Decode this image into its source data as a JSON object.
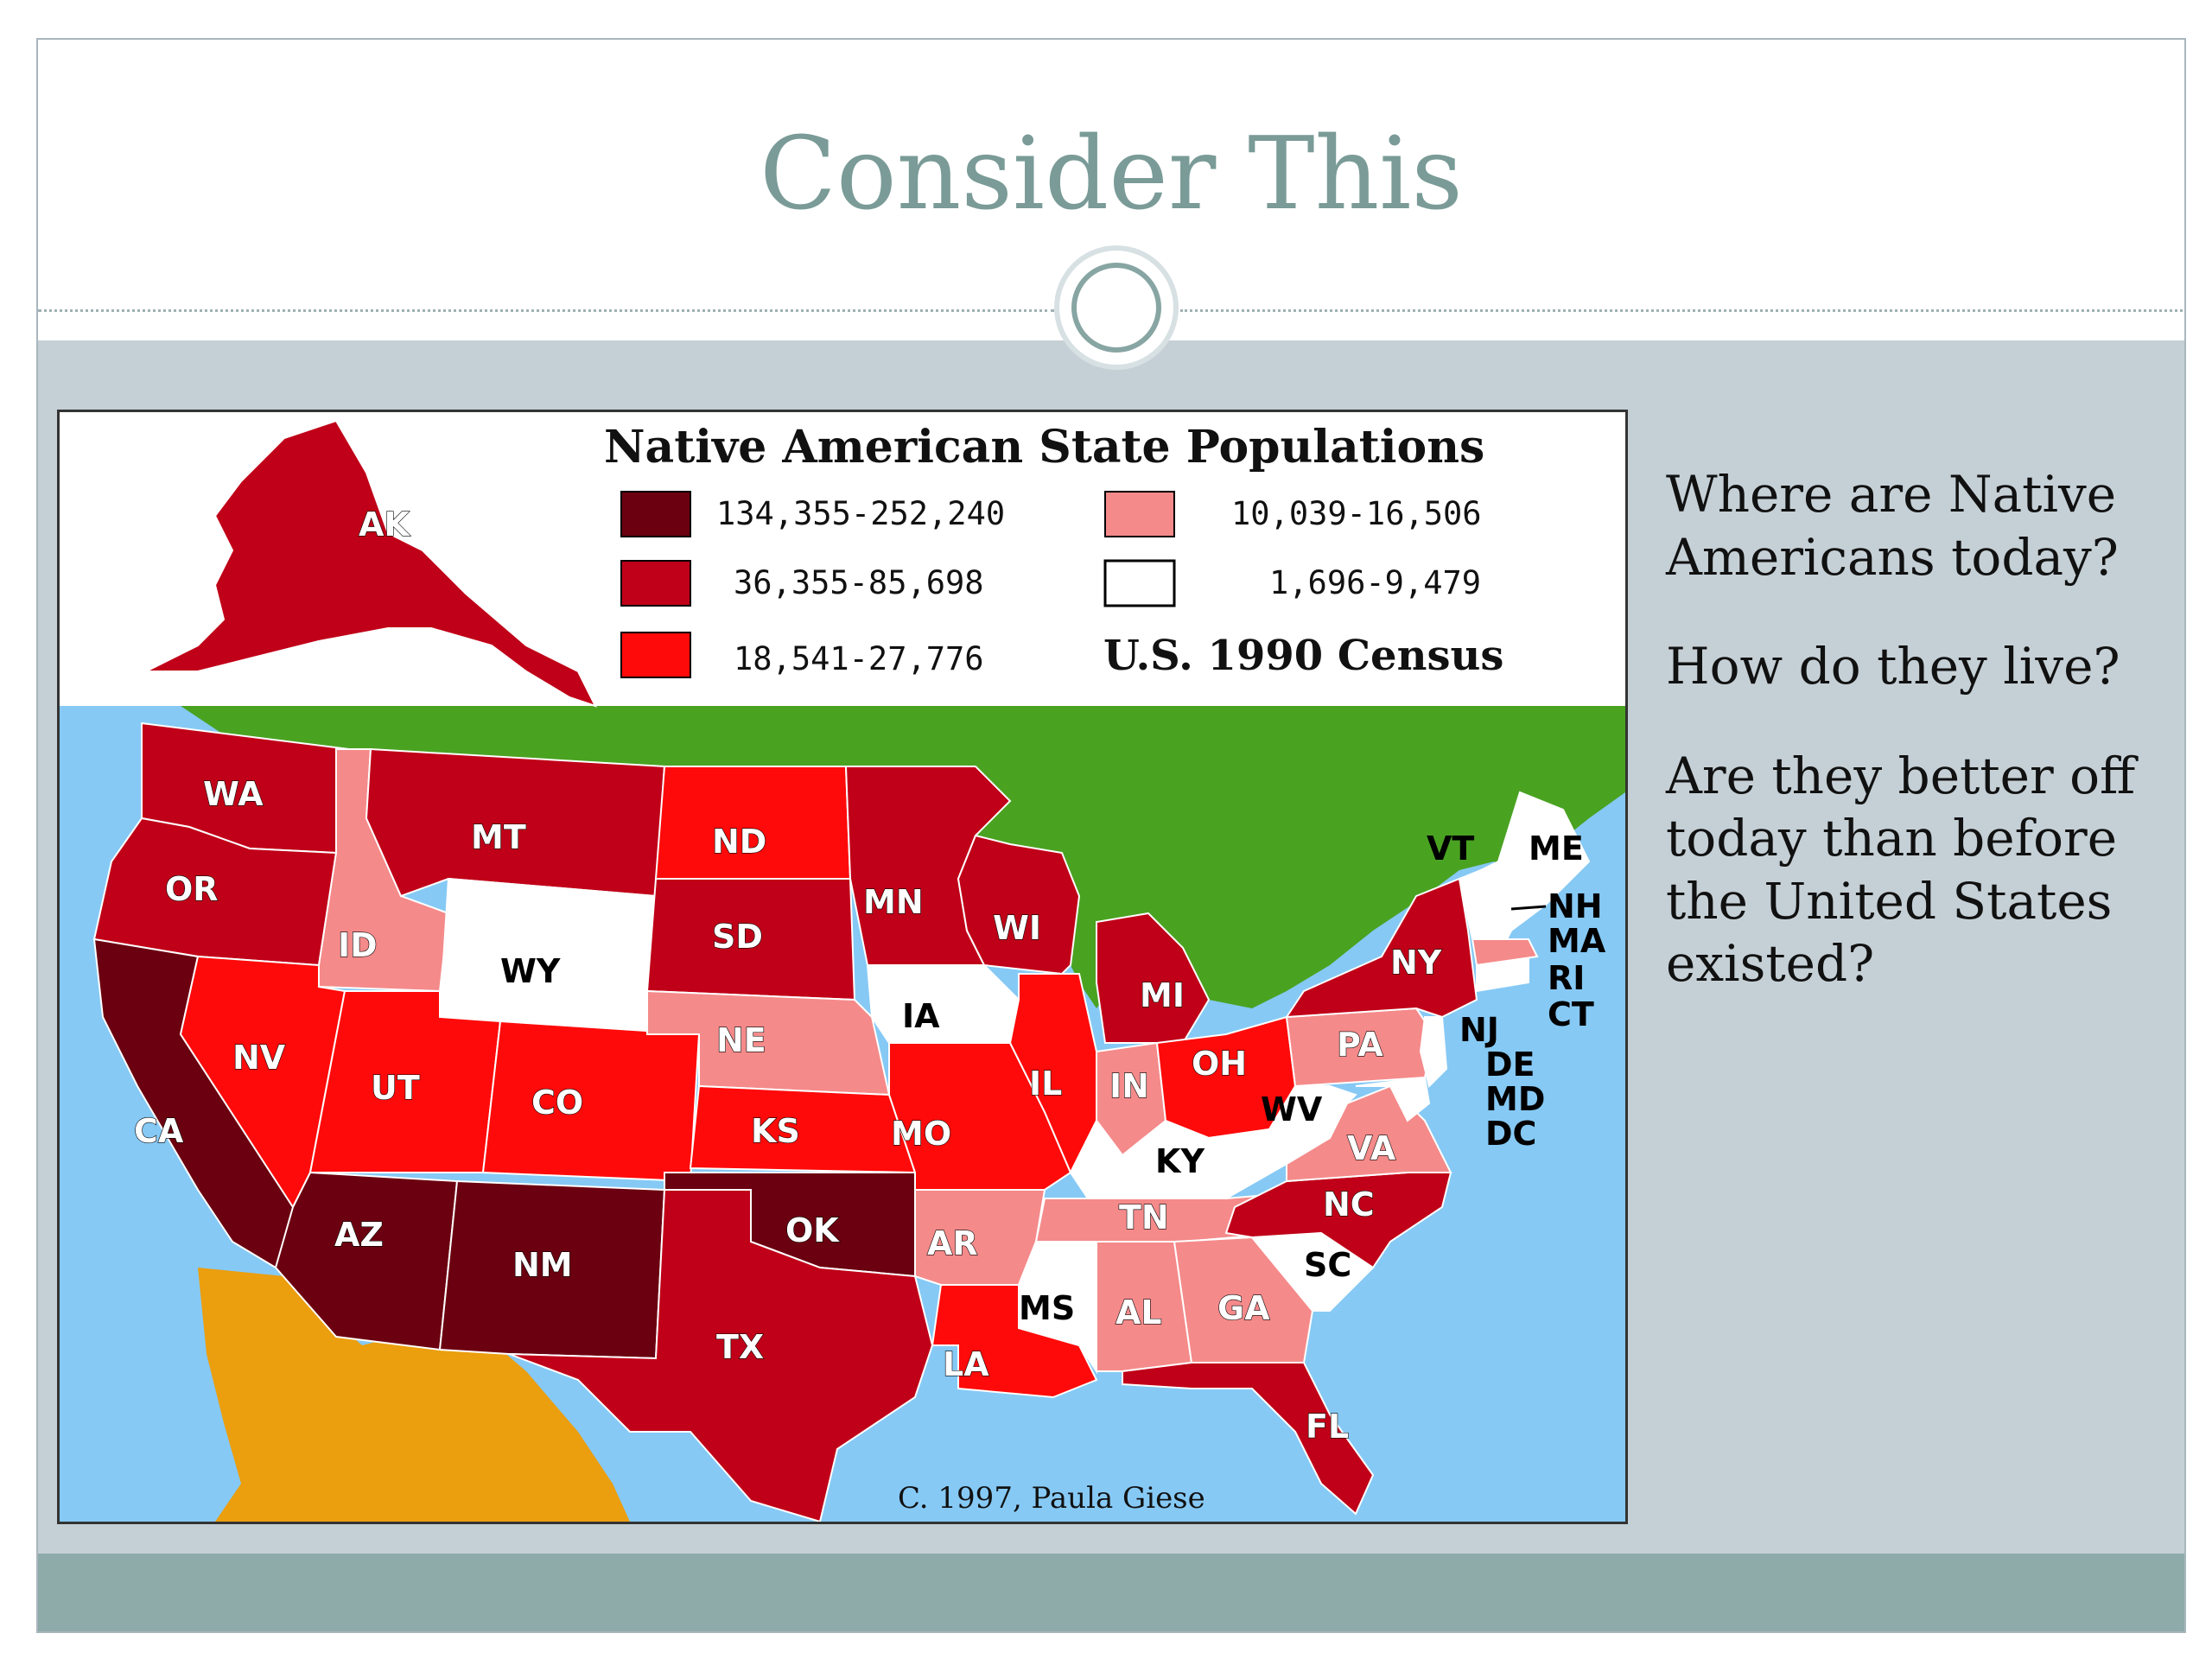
{
  "slide": {
    "title": "Consider This",
    "questions": [
      "Where are Native Americans today?",
      "How do they live?",
      "Are they better off today than before the United States existed?"
    ]
  },
  "map": {
    "title": "Native American State Populations",
    "source": "U.S. 1990 Census",
    "credit": "C. 1997, Paula Giese",
    "legend": [
      {
        "range": "134,355-252,240",
        "color": "#6b0010"
      },
      {
        "range": "36,355-85,698",
        "color": "#c00018"
      },
      {
        "range": "18,541-27,776",
        "color": "#ff0a0a"
      },
      {
        "range": "10,039-16,506",
        "color": "#f58a8a"
      },
      {
        "range": "1,696-9,479",
        "color": "#ffffff"
      }
    ],
    "colors": {
      "ocean": "#86c9f5",
      "canada": "#4aa221",
      "mexico": "#eb9e0e",
      "cuba": "#eb9e0e"
    },
    "states": {
      "AK": "AK",
      "WA": "WA",
      "OR": "OR",
      "CA": "CA",
      "ID": "ID",
      "NV": "NV",
      "MT": "MT",
      "WY": "WY",
      "UT": "UT",
      "AZ": "AZ",
      "CO": "CO",
      "NM": "NM",
      "ND": "ND",
      "SD": "SD",
      "NE": "NE",
      "KS": "KS",
      "OK": "OK",
      "TX": "TX",
      "MN": "MN",
      "IA": "IA",
      "MO": "MO",
      "AR": "AR",
      "LA": "LA",
      "WI": "WI",
      "IL": "IL",
      "MI": "MI",
      "IN": "IN",
      "OH": "OH",
      "KY": "KY",
      "TN": "TN",
      "MS": "MS",
      "AL": "AL",
      "GA": "GA",
      "FL": "FL",
      "SC": "SC",
      "NC": "NC",
      "VA": "VA",
      "WV": "WV",
      "PA": "PA",
      "NY": "NY",
      "VT": "VT",
      "ME": "ME",
      "NH": "NH",
      "MA": "MA",
      "RI": "RI",
      "CT": "CT",
      "NJ": "NJ",
      "DE": "DE",
      "MD": "MD",
      "DC": "DC"
    }
  }
}
